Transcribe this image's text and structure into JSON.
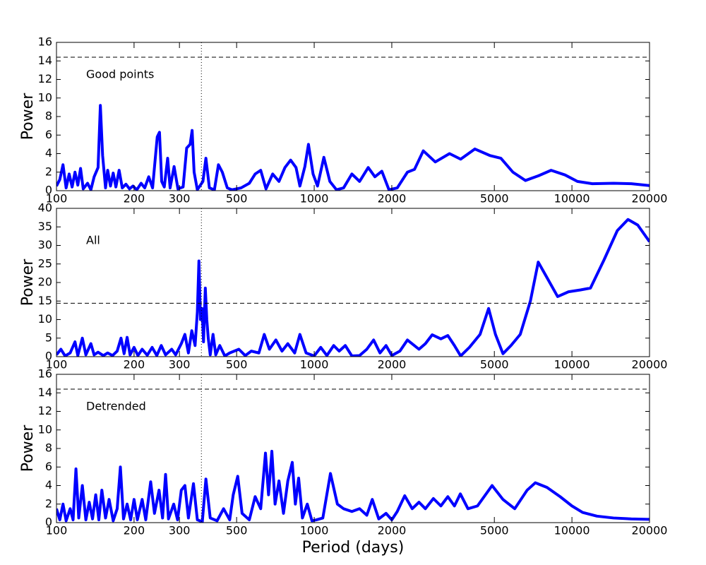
{
  "chart_data": [
    {
      "type": "line",
      "xscale": "log",
      "annotation": "Good points",
      "ylabel": "Power",
      "xlim": [
        100,
        20000
      ],
      "xticks": [
        100,
        200,
        300,
        500,
        1000,
        2000,
        5000,
        10000,
        20000
      ],
      "ylim": [
        0,
        16
      ],
      "yticks": [
        0,
        2,
        4,
        6,
        8,
        10,
        12,
        14,
        16
      ],
      "hline": 14.4,
      "vline": 365,
      "series": [
        {
          "color": "#0000ff",
          "x": [
            100,
            103,
            106,
            109,
            112,
            115,
            118,
            121,
            124,
            127,
            132,
            136,
            140,
            145,
            148,
            151,
            155,
            158,
            162,
            166,
            170,
            175,
            180,
            186,
            192,
            198,
            205,
            213,
            220,
            228,
            236,
            246,
            251,
            256,
            262,
            270,
            276,
            286,
            296,
            310,
            320,
            330,
            336,
            342,
            352,
            370,
            380,
            392,
            410,
            425,
            440,
            460,
            480,
            520,
            560,
            590,
            620,
            650,
            690,
            730,
            770,
            810,
            850,
            880,
            920,
            950,
            990,
            1030,
            1090,
            1150,
            1220,
            1300,
            1400,
            1500,
            1620,
            1720,
            1830,
            1950,
            2100,
            2300,
            2450,
            2650,
            2950,
            3350,
            3700,
            4200,
            4800,
            5300,
            5900,
            6600,
            7400,
            8300,
            9400,
            10500,
            12000,
            14500,
            17000,
            20000
          ],
          "values": [
            0.5,
            1.2,
            2.8,
            0.3,
            1.8,
            0.4,
            2.0,
            0.6,
            2.4,
            0.2,
            0.8,
            0.1,
            1.5,
            2.5,
            9.2,
            3.8,
            0.3,
            2.2,
            0.5,
            1.9,
            0.4,
            2.2,
            0.3,
            0.7,
            0.2,
            0.5,
            0.1,
            0.8,
            0.3,
            1.5,
            0.3,
            5.8,
            6.3,
            1.0,
            0.4,
            3.5,
            0.3,
            2.6,
            0.2,
            0.4,
            4.6,
            5.0,
            6.5,
            2.0,
            0.1,
            1.0,
            3.5,
            0.3,
            0.1,
            2.8,
            2.0,
            0.3,
            0.1,
            0.3,
            0.8,
            1.8,
            2.2,
            0.2,
            1.8,
            1.0,
            2.5,
            3.3,
            2.5,
            0.5,
            2.6,
            5.0,
            1.8,
            0.5,
            3.6,
            1.0,
            0.1,
            0.3,
            1.8,
            1.0,
            2.5,
            1.5,
            2.1,
            0.1,
            0.3,
            2.0,
            2.3,
            4.3,
            3.1,
            4.0,
            3.4,
            4.5,
            3.8,
            3.5,
            2.0,
            1.1,
            1.6,
            2.2,
            1.7,
            1.0,
            0.75,
            0.8,
            0.75,
            0.55
          ]
        }
      ]
    },
    {
      "type": "line",
      "xscale": "log",
      "annotation": "All",
      "ylabel": "Power",
      "xlim": [
        100,
        20000
      ],
      "xticks": [
        100,
        200,
        300,
        500,
        1000,
        2000,
        5000,
        10000,
        20000
      ],
      "ylim": [
        0,
        40
      ],
      "yticks": [
        0,
        5,
        10,
        15,
        20,
        25,
        30,
        35,
        40
      ],
      "hline": 14.4,
      "vline": 365,
      "series": [
        {
          "color": "#0000ff",
          "x": [
            100,
            104,
            108,
            113,
            118,
            121,
            126,
            130,
            136,
            140,
            145,
            152,
            158,
            165,
            172,
            178,
            183,
            188,
            193,
            200,
            207,
            215,
            225,
            235,
            245,
            255,
            265,
            280,
            290,
            305,
            315,
            325,
            335,
            345,
            352,
            357,
            362,
            367,
            372,
            378,
            383,
            388,
            395,
            405,
            415,
            430,
            450,
            470,
            510,
            540,
            570,
            610,
            640,
            670,
            710,
            750,
            790,
            840,
            880,
            930,
            1000,
            1060,
            1120,
            1190,
            1250,
            1320,
            1400,
            1500,
            1600,
            1700,
            1800,
            1900,
            2000,
            2150,
            2300,
            2550,
            2700,
            2870,
            3100,
            3300,
            3500,
            3700,
            4000,
            4400,
            4750,
            5050,
            5400,
            5800,
            6300,
            6900,
            7400,
            7900,
            8800,
            9700,
            10800,
            11800,
            13300,
            15000,
            16500,
            18000,
            20000
          ],
          "values": [
            0.5,
            2.0,
            0.2,
            1.0,
            4.0,
            0.3,
            5.0,
            0.5,
            3.5,
            0.5,
            1.2,
            0.3,
            1.0,
            0.3,
            1.5,
            5.0,
            0.8,
            5.2,
            0.5,
            2.5,
            0.3,
            2.0,
            0.4,
            2.5,
            0.3,
            3.0,
            0.5,
            2.0,
            0.5,
            3.5,
            6.0,
            1.0,
            7.0,
            3.0,
            12,
            25.8,
            10,
            13,
            4,
            18.5,
            10,
            5,
            0.5,
            6.0,
            0.5,
            3.0,
            0.2,
            1.0,
            2.0,
            0.3,
            1.5,
            1.0,
            6.0,
            2.0,
            4.5,
            1.5,
            3.5,
            1.0,
            6.0,
            1.0,
            0.2,
            2.5,
            0.3,
            3.0,
            1.5,
            3.0,
            0.2,
            0.3,
            2.0,
            4.5,
            1.0,
            3.0,
            0.3,
            1.5,
            4.5,
            2.0,
            3.5,
            5.9,
            4.8,
            5.7,
            3.0,
            0.2,
            2.5,
            6.0,
            13.0,
            6.0,
            0.8,
            3.0,
            6.0,
            15,
            25.5,
            22,
            16.2,
            17.5,
            18,
            18.5,
            26,
            34,
            37,
            35.5,
            31
          ]
        }
      ]
    },
    {
      "type": "line",
      "xscale": "log",
      "annotation": "Detrended",
      "ylabel": "Power",
      "xlabel": "Period (days)",
      "xlim": [
        100,
        20000
      ],
      "xticks": [
        100,
        200,
        300,
        500,
        1000,
        2000,
        5000,
        10000,
        20000
      ],
      "ylim": [
        0,
        16
      ],
      "yticks": [
        0,
        2,
        4,
        6,
        8,
        10,
        12,
        14,
        16
      ],
      "hline": 14.4,
      "vline": 365,
      "series": [
        {
          "color": "#0000ff",
          "x": [
            100,
            103,
            106,
            109,
            113,
            116,
            119,
            122,
            126,
            130,
            134,
            138,
            142,
            146,
            150,
            155,
            160,
            166,
            172,
            177,
            182,
            188,
            194,
            200,
            206,
            215,
            222,
            232,
            240,
            250,
            258,
            265,
            272,
            285,
            295,
            305,
            315,
            325,
            340,
            352,
            368,
            380,
            395,
            420,
            445,
            470,
            485,
            505,
            525,
            560,
            590,
            620,
            647,
            665,
            685,
            705,
            730,
            760,
            790,
            822,
            845,
            870,
            900,
            940,
            980,
            1020,
            1080,
            1156,
            1230,
            1300,
            1400,
            1500,
            1600,
            1680,
            1780,
            1900,
            2000,
            2100,
            2245,
            2400,
            2550,
            2700,
            2900,
            3100,
            3300,
            3500,
            3690,
            3950,
            4300,
            4900,
            5400,
            6000,
            6700,
            7210,
            8000,
            9000,
            10000,
            11000,
            12500,
            14500,
            17000,
            20000
          ],
          "values": [
            1.5,
            0.3,
            2.0,
            0.2,
            1.5,
            0.3,
            5.8,
            0.5,
            4.0,
            0.3,
            2.2,
            0.4,
            3.0,
            0.3,
            3.5,
            0.5,
            2.5,
            0.2,
            1.5,
            6.0,
            0.4,
            2.0,
            0.3,
            2.5,
            0.3,
            2.5,
            0.3,
            4.4,
            1.0,
            3.5,
            0.5,
            5.2,
            0.4,
            2.0,
            0.3,
            3.5,
            4.0,
            0.5,
            4.2,
            0.3,
            0.1,
            4.7,
            0.5,
            0.2,
            1.5,
            0.3,
            3.0,
            5.0,
            1.0,
            0.3,
            2.8,
            1.5,
            7.5,
            3.0,
            7.7,
            2.0,
            4.5,
            1.0,
            4.5,
            6.5,
            2.0,
            4.8,
            0.5,
            2.0,
            0.2,
            0.3,
            0.5,
            5.3,
            2.0,
            1.5,
            1.2,
            1.5,
            0.8,
            2.5,
            0.4,
            1.0,
            0.3,
            1.2,
            2.9,
            1.5,
            2.2,
            1.5,
            2.6,
            1.8,
            2.8,
            1.8,
            3.1,
            1.5,
            1.8,
            4.0,
            2.5,
            1.5,
            3.5,
            4.3,
            3.8,
            2.8,
            1.8,
            1.1,
            0.7,
            0.5,
            0.4,
            0.35
          ]
        }
      ]
    }
  ]
}
